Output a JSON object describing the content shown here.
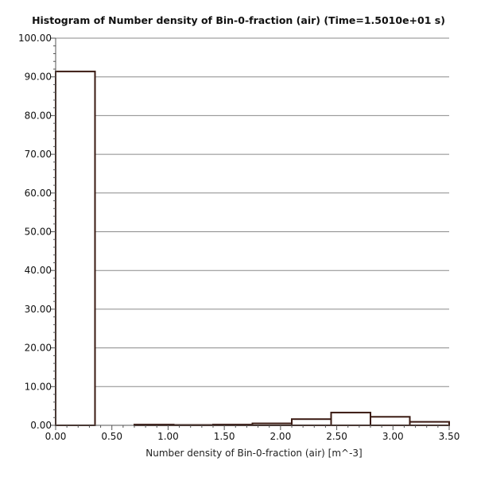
{
  "chart_data": {
    "type": "bar",
    "title": "Histogram of Number density of Bin-0-fraction (air) (Time=1.5010e+01 s)",
    "xlabel": "Number density of Bin-0-fraction (air) [m^-3]",
    "ylabel": "",
    "xlim": [
      0,
      3.5
    ],
    "ylim": [
      0,
      100
    ],
    "x_ticks": [
      "0.00",
      "0.50",
      "1.00",
      "1.50",
      "2.00",
      "2.50",
      "3.00",
      "3.50"
    ],
    "y_ticks": [
      "0.00",
      "10.00",
      "20.00",
      "30.00",
      "40.00",
      "50.00",
      "60.00",
      "70.00",
      "80.00",
      "90.00",
      "100.00"
    ],
    "grid": "horizontal",
    "bins": [
      {
        "x0": 0.0,
        "x1": 0.35,
        "value": 91.4
      },
      {
        "x0": 0.35,
        "x1": 0.7,
        "value": 0.0
      },
      {
        "x0": 0.7,
        "x1": 1.05,
        "value": 0.2
      },
      {
        "x0": 1.05,
        "x1": 1.4,
        "value": 0.1
      },
      {
        "x0": 1.4,
        "x1": 1.75,
        "value": 0.2
      },
      {
        "x0": 1.75,
        "x1": 2.1,
        "value": 0.5
      },
      {
        "x0": 2.1,
        "x1": 2.45,
        "value": 1.6
      },
      {
        "x0": 2.45,
        "x1": 2.8,
        "value": 3.3
      },
      {
        "x0": 2.8,
        "x1": 3.15,
        "value": 2.2
      },
      {
        "x0": 3.15,
        "x1": 3.5,
        "value": 0.9
      }
    ],
    "colors": {
      "bar_stroke": "#3a1a12",
      "bar_fill": "#ffffff",
      "grid": "#8a8a8a",
      "axis": "#555555"
    }
  }
}
